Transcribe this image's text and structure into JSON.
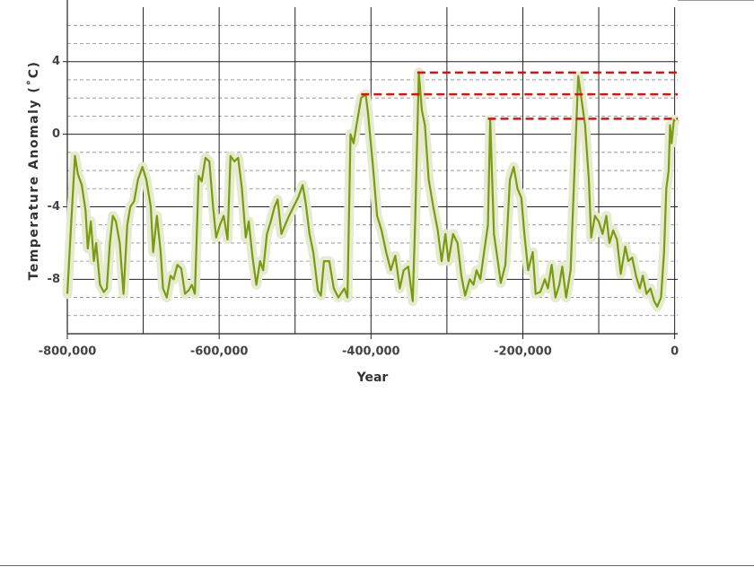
{
  "chart_data": {
    "type": "line",
    "x_label": "Year",
    "y_label": "Temperature Anomaly (˚C)",
    "xlim": [
      -800000,
      4000
    ],
    "ylim": [
      -11,
      7.4
    ],
    "xticks": [
      {
        "value": -800000,
        "label": "-800,000"
      },
      {
        "value": -600000,
        "label": "-600,000"
      },
      {
        "value": -400000,
        "label": "-400,000"
      },
      {
        "value": -200000,
        "label": "-200,000"
      },
      0
    ],
    "minor_xticks": [
      -700000,
      -500000,
      -300000,
      -100000
    ],
    "yticks": [
      4,
      0,
      -4,
      -8
    ],
    "minor_yticks": [
      -10,
      -9,
      -7,
      -6,
      -5,
      -3,
      -2,
      -1,
      1,
      2,
      3,
      5,
      6
    ],
    "grid": true,
    "series": [
      {
        "color": "#7a9a14",
        "spread_color": "#e6ebcf",
        "x": [
          -800000,
          -795000,
          -790000,
          -786000,
          -781000,
          -776000,
          -773000,
          -769000,
          -765000,
          -762000,
          -757000,
          -752000,
          -748000,
          -744000,
          -740000,
          -736000,
          -731000,
          -726000,
          -721000,
          -717000,
          -712000,
          -707000,
          -701000,
          -696000,
          -690000,
          -687000,
          -682000,
          -677000,
          -674000,
          -669000,
          -664000,
          -660000,
          -655000,
          -650000,
          -645000,
          -640000,
          -636000,
          -632000,
          -627000,
          -623000,
          -618000,
          -613000,
          -608000,
          -604000,
          -599000,
          -594000,
          -589000,
          -585000,
          -580000,
          -575000,
          -570000,
          -565000,
          -561000,
          -556000,
          -551000,
          -546000,
          -542000,
          -537000,
          -532000,
          -527000,
          -523000,
          -518000,
          -513000,
          -508000,
          -502000,
          -496000,
          -490000,
          -486000,
          -481000,
          -476000,
          -470000,
          -466000,
          -462000,
          -455000,
          -449000,
          -443000,
          -435000,
          -431000,
          -427000,
          -423000,
          -419000,
          -413000,
          -407000,
          -404000,
          -398000,
          -392000,
          -386000,
          -380000,
          -374000,
          -368000,
          -362000,
          -357000,
          -351000,
          -345000,
          -342000,
          -337000,
          -333000,
          -329000,
          -324000,
          -318000,
          -312000,
          -307000,
          -302000,
          -298000,
          -292000,
          -286000,
          -281000,
          -276000,
          -270000,
          -265000,
          -261000,
          -256000,
          -251000,
          -246000,
          -243000,
          -238000,
          -233000,
          -229000,
          -223000,
          -217000,
          -212000,
          -207000,
          -202000,
          -198000,
          -193000,
          -187000,
          -183000,
          -177000,
          -171000,
          -167000,
          -162000,
          -157000,
          -152000,
          -148000,
          -143000,
          -137000,
          -132000,
          -127000,
          -123000,
          -118000,
          -113000,
          -110000,
          -105000,
          -100000,
          -95000,
          -90000,
          -86000,
          -81000,
          -76000,
          -71000,
          -65000,
          -61000,
          -56000,
          -51000,
          -46000,
          -42000,
          -37000,
          -32000,
          -27000,
          -23000,
          -18000,
          -14000,
          -11000,
          -8000,
          -6000,
          -4000,
          -1000,
          0
        ],
        "values": [
          -8.8,
          -5,
          -1.2,
          -2.2,
          -2.8,
          -4.2,
          -6.3,
          -4.8,
          -7,
          -6,
          -8.3,
          -8.7,
          -8.5,
          -6,
          -4.5,
          -4.8,
          -6,
          -8.8,
          -5,
          -4,
          -3.7,
          -2.5,
          -1.8,
          -2.5,
          -4,
          -6.5,
          -4.5,
          -6.5,
          -8.5,
          -9,
          -7.8,
          -8,
          -7.2,
          -7.4,
          -8.8,
          -8.6,
          -8.3,
          -8.8,
          -2.3,
          -2.6,
          -1.3,
          -1.5,
          -4,
          -5.7,
          -5,
          -4.5,
          -5.8,
          -1.2,
          -1.5,
          -1.3,
          -3,
          -5.7,
          -4.8,
          -6.8,
          -8.3,
          -7,
          -7.5,
          -5.5,
          -4.8,
          -4,
          -3.6,
          -5.5,
          -5,
          -4.5,
          -4,
          -3.5,
          -2.8,
          -3.8,
          -5.5,
          -6.5,
          -8.6,
          -8.9,
          -7,
          -7,
          -8.5,
          -9,
          -8.5,
          -9,
          0,
          -0.5,
          0.5,
          2.0,
          2.2,
          1.2,
          -1.5,
          -4.5,
          -5.3,
          -6.5,
          -7.5,
          -6.7,
          -8.5,
          -7.5,
          -7.3,
          -9.2,
          -5,
          3.4,
          1.3,
          0.5,
          -2.5,
          -4,
          -5.3,
          -7,
          -5.5,
          -7,
          -5.5,
          -6,
          -7.8,
          -8.9,
          -8,
          -8.3,
          -7.5,
          -8,
          -6.5,
          -5,
          0.8,
          -5.5,
          -7,
          -8.2,
          -7.2,
          -2.5,
          -1.8,
          -3,
          -3.5,
          -5.5,
          -7.5,
          -6.5,
          -8.8,
          -8.7,
          -8,
          -8.5,
          -7.2,
          -9,
          -8.3,
          -7.3,
          -9,
          -7.5,
          -2,
          3.2,
          2,
          0.5,
          -2.5,
          -5.7,
          -4.5,
          -4.8,
          -5.5,
          -4.5,
          -6,
          -5.3,
          -5.8,
          -7.7,
          -6.2,
          -7,
          -6.8,
          -7.8,
          -8.5,
          -7.8,
          -8.8,
          -8.5,
          -9.2,
          -9.5,
          -9,
          -6.5,
          -3,
          -2,
          0.5,
          -0.5,
          0.8,
          0.7
        ]
      }
    ],
    "reference_lines": [
      {
        "x": -339000,
        "y": 3.4,
        "color": "#e01010"
      },
      {
        "x": -413000,
        "y": 2.2,
        "color": "#e01010"
      },
      {
        "x": -246000,
        "y": 0.85,
        "color": "#e01010"
      }
    ]
  }
}
